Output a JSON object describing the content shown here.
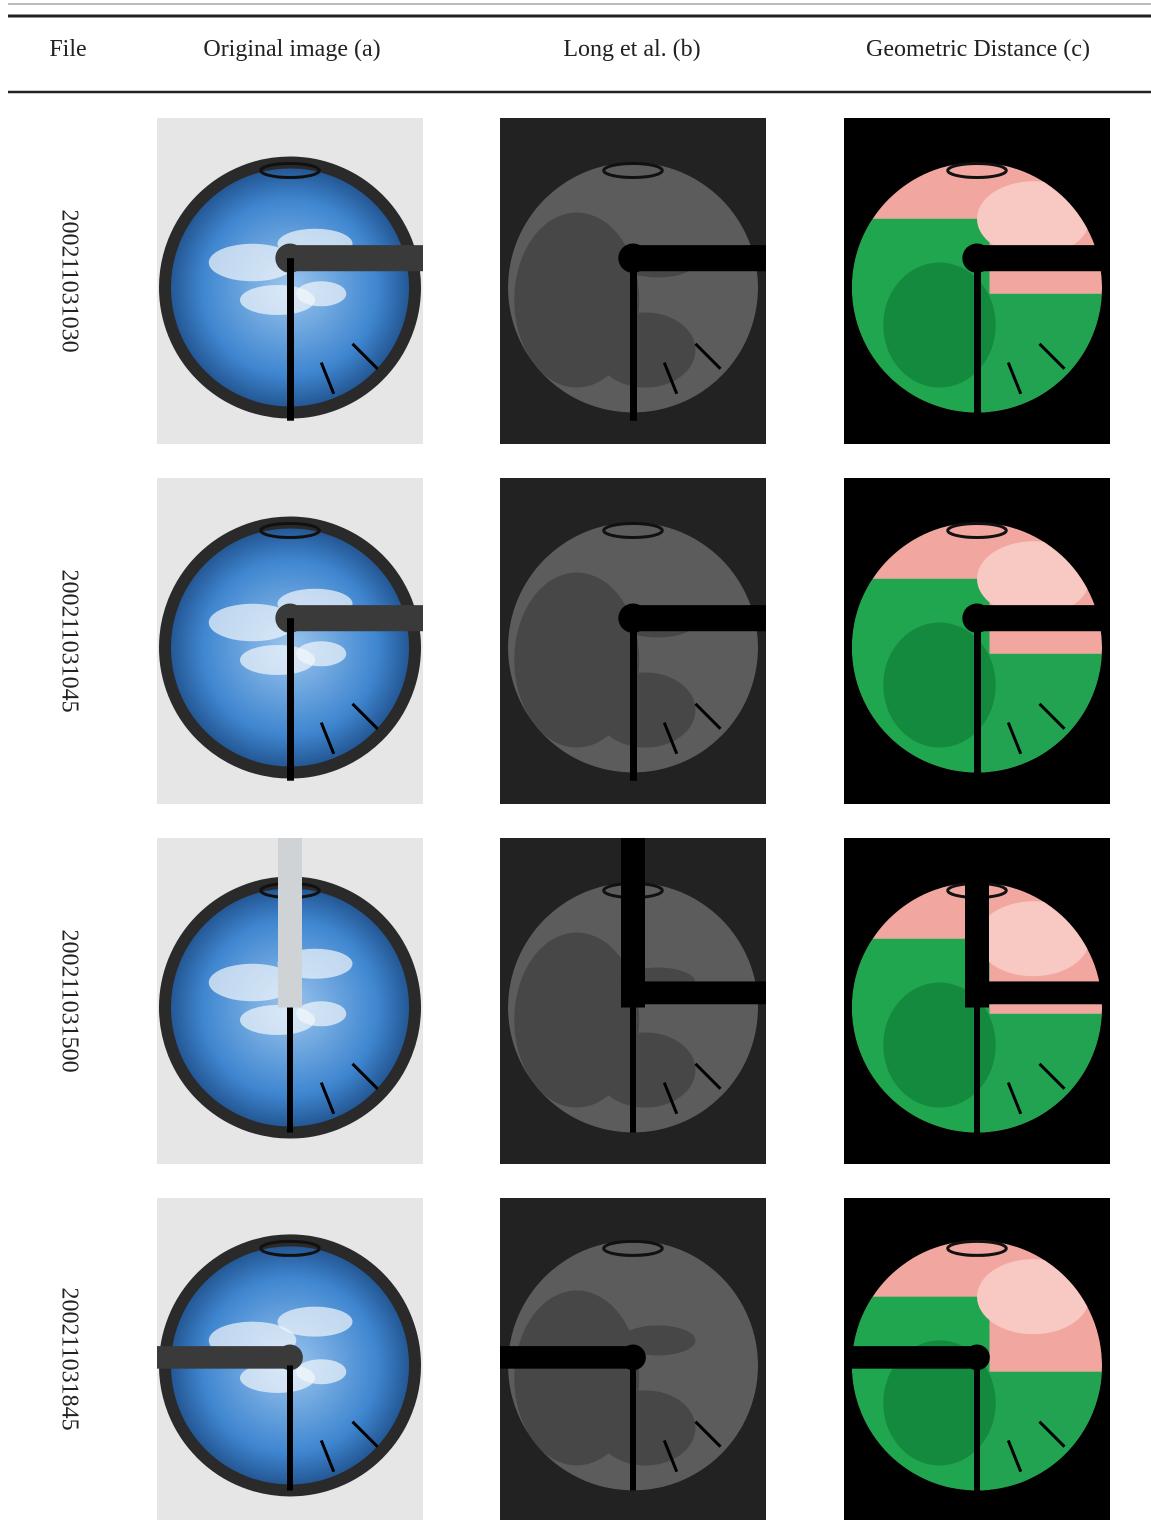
{
  "header": {
    "columns": [
      "File",
      "Original image (a)",
      "Long et al. (b)",
      "Geometric Distance (c)"
    ]
  },
  "table": {
    "rows": [
      {
        "file": "200211031030"
      },
      {
        "file": "200211031045"
      },
      {
        "file": "200211031500"
      },
      {
        "file": "200211031845"
      }
    ]
  }
}
